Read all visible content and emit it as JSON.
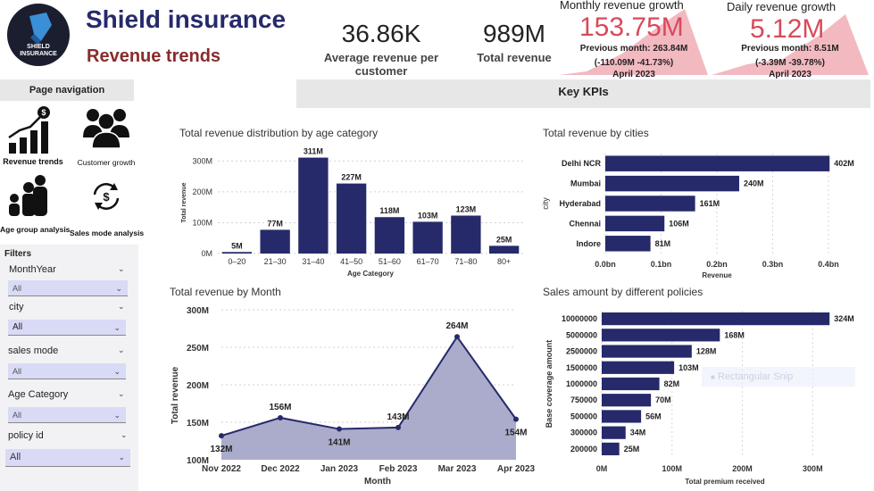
{
  "header": {
    "brand_title": "Shield insurance",
    "brand_subtitle": "Revenue trends",
    "logo_text_1": "SHIELD",
    "logo_text_2": "INSURANCE"
  },
  "kpis": {
    "avg_revenue_value": "36.86K",
    "avg_revenue_label": "Average revenue per customer",
    "total_revenue_value": "989M",
    "total_revenue_label": "Total revenue"
  },
  "monthly_growth": {
    "title": "Monthly revenue growth",
    "value": "153.75M",
    "previous": "Previous month: 263.84M",
    "change": "(-110.09M -41.73%)",
    "period": "April 2023"
  },
  "daily_growth": {
    "title": "Daily revenue growth",
    "value": "5.12M",
    "previous": "Previous month: 8.51M",
    "change": "(-3.39M -39.78%)",
    "period": "April 2023"
  },
  "bands": {
    "page_navigation": "Page navigation",
    "key_kpis": "Key KPIs"
  },
  "nav": {
    "revenue_trends": "Revenue trends",
    "customer_growth": "Customer growth",
    "age_group_analysis": "Age group analysis",
    "sales_mode_analysis": "Sales mode analysis"
  },
  "filters": {
    "title": "Filters",
    "items": [
      {
        "label": "MonthYear",
        "value": "All"
      },
      {
        "label": "city",
        "value": "All"
      },
      {
        "label": "sales mode",
        "value": "All"
      },
      {
        "label": "Age Category",
        "value": "All"
      },
      {
        "label": "policy id",
        "value": "All"
      }
    ]
  },
  "overlay": {
    "snip_label": "Rectangular Snip"
  },
  "colors": {
    "navy": "#262a6b",
    "bar": "#262a6b",
    "area": "#a6a8c8",
    "growth_red": "#d84a5a"
  },
  "chart_data": [
    {
      "id": "age",
      "type": "bar",
      "title": "Total revenue distribution by age category",
      "xlabel": "Age Category",
      "ylabel": "Total revenue",
      "categories": [
        "0–20",
        "21–30",
        "31–40",
        "41–50",
        "51–60",
        "61–70",
        "71–80",
        "80+"
      ],
      "values": [
        5,
        77,
        311,
        227,
        118,
        103,
        123,
        25
      ],
      "data_labels": [
        "5M",
        "77M",
        "311M",
        "227M",
        "118M",
        "103M",
        "123M",
        "25M"
      ],
      "yticks": [
        0,
        100,
        200,
        300
      ],
      "ytick_labels": [
        "0M",
        "100M",
        "200M",
        "300M"
      ],
      "ylim": [
        0,
        330
      ]
    },
    {
      "id": "cities",
      "type": "bar",
      "orientation": "horizontal",
      "title": "Total revenue by cities",
      "xlabel": "Revenue",
      "ylabel": "city",
      "categories": [
        "Delhi NCR",
        "Mumbai",
        "Hyderabad",
        "Chennai",
        "Indore"
      ],
      "values": [
        402,
        240,
        161,
        106,
        81
      ],
      "data_labels": [
        "402M",
        "240M",
        "161M",
        "106M",
        "81M"
      ],
      "xticks": [
        0,
        100,
        200,
        300,
        400
      ],
      "xtick_labels": [
        "0.0bn",
        "0.1bn",
        "0.2bn",
        "0.3bn",
        "0.4bn"
      ],
      "xlim": [
        0,
        400
      ]
    },
    {
      "id": "month",
      "type": "area",
      "title": "Total revenue by Month",
      "xlabel": "Month",
      "ylabel": "Total revenue",
      "categories": [
        "Nov 2022",
        "Dec 2022",
        "Jan 2023",
        "Feb 2023",
        "Mar 2023",
        "Apr 2023"
      ],
      "values": [
        132,
        156,
        141,
        143,
        264,
        154
      ],
      "data_labels": [
        "132M",
        "156M",
        "141M",
        "143M",
        "264M",
        "154M"
      ],
      "yticks": [
        100,
        150,
        200,
        250,
        300
      ],
      "ytick_labels": [
        "100M",
        "150M",
        "200M",
        "250M",
        "300M"
      ],
      "ylim": [
        100,
        300
      ]
    },
    {
      "id": "policies",
      "type": "bar",
      "orientation": "horizontal",
      "title": "Sales amount by different policies",
      "xlabel": "Total premium received",
      "ylabel": "Base coverage amount",
      "categories": [
        "10000000",
        "5000000",
        "2500000",
        "1500000",
        "1000000",
        "750000",
        "500000",
        "300000",
        "200000"
      ],
      "values": [
        324,
        168,
        128,
        103,
        82,
        70,
        56,
        34,
        25
      ],
      "data_labels": [
        "324M",
        "168M",
        "128M",
        "103M",
        "82M",
        "70M",
        "56M",
        "34M",
        "25M"
      ],
      "xticks": [
        0,
        100,
        200,
        300
      ],
      "xtick_labels": [
        "0M",
        "100M",
        "200M",
        "300M"
      ],
      "xlim": [
        0,
        325
      ]
    }
  ]
}
